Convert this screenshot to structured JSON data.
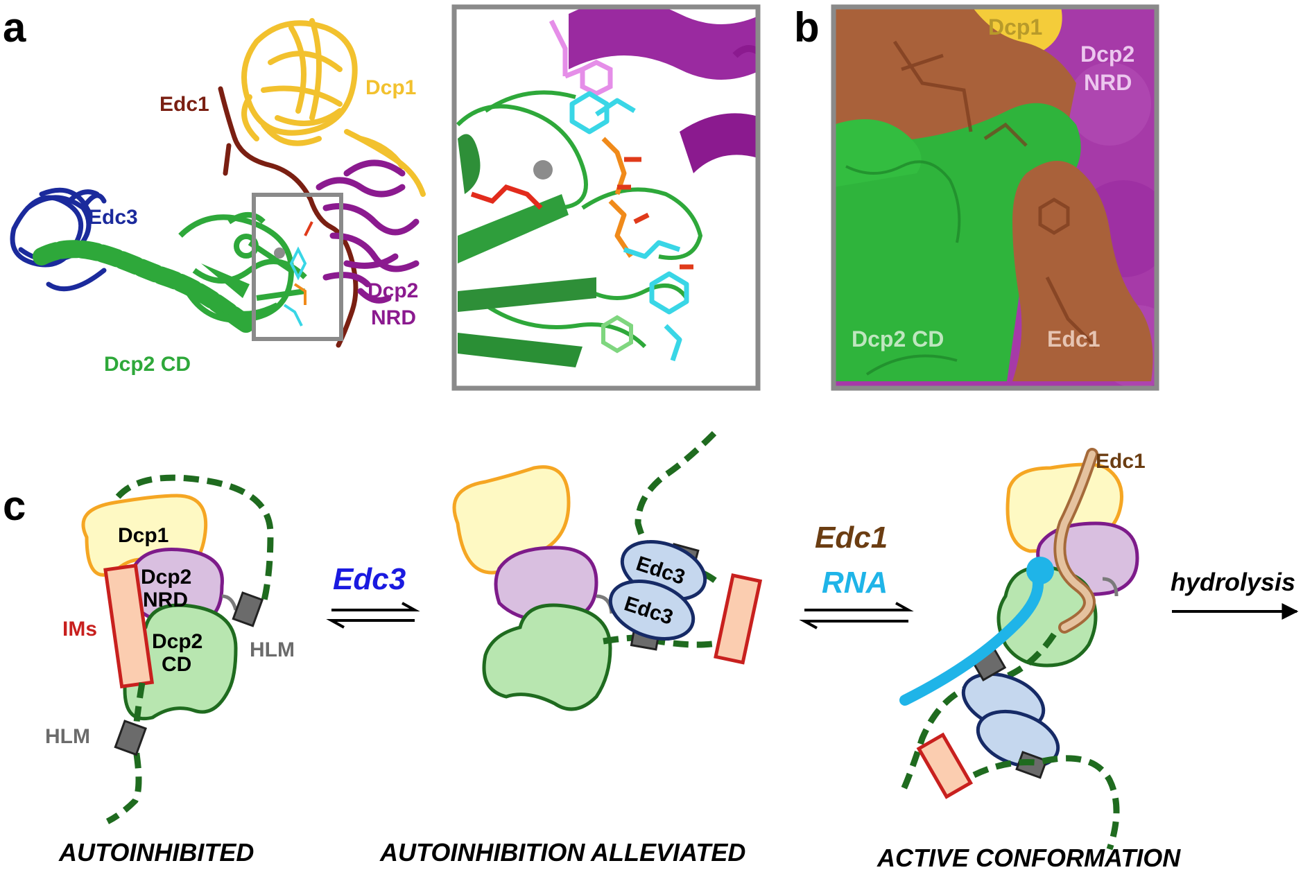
{
  "panels": {
    "a": {
      "letter": "a",
      "labels": {
        "edc1": "Edc1",
        "dcp1": "Dcp1",
        "edc3": "Edc3",
        "dcp2_nrd_line1": "Dcp2",
        "dcp2_nrd_line2": "NRD",
        "dcp2_cd": "Dcp2 CD"
      }
    },
    "b": {
      "letter": "b",
      "labels": {
        "dcp1": "Dcp1",
        "dcp2_nrd_line1": "Dcp2",
        "dcp2_nrd_line2": "NRD",
        "dcp2_cd": "Dcp2 CD",
        "edc1": "Edc1"
      }
    },
    "c": {
      "letter": "c",
      "autoinhibited": {
        "dcp1": "Dcp1",
        "dcp2_nrd_line1": "Dcp2",
        "dcp2_nrd_line2": "NRD",
        "dcp2_cd_line1": "Dcp2",
        "dcp2_cd_line2": "CD",
        "ims": "IMs",
        "hlm_upper": "HLM",
        "hlm_lower": "HLM",
        "state": "AUTOINHIBITED"
      },
      "arrow1": {
        "label": "Edc3"
      },
      "alleviated": {
        "edc3_top": "Edc3",
        "edc3_bottom": "Edc3",
        "state": "AUTOINHIBITION ALLEVIATED"
      },
      "arrow2": {
        "label_top": "Edc1",
        "label_bottom": "RNA"
      },
      "active": {
        "edc1": "Edc1",
        "state": "ACTIVE CONFORMATION"
      },
      "arrow3": {
        "label": "hydrolysis"
      }
    }
  },
  "colors": {
    "dcp1": "#f2c12e",
    "dcp2_nrd": "#8b1a8f",
    "dcp2_cd": "#2ea83a",
    "edc3": "#1b2a9c",
    "edc1": "#7a1f12",
    "edc1_surface": "#a65a33",
    "rna": "#1fb4e8",
    "hlm": "#6b6b6b",
    "ims_fill": "#fbcdb0",
    "ims_edge": "#c8201e",
    "edc3_arrow_text": "#1a1ae0",
    "edc1_arrow_text": "#6b3d12"
  }
}
